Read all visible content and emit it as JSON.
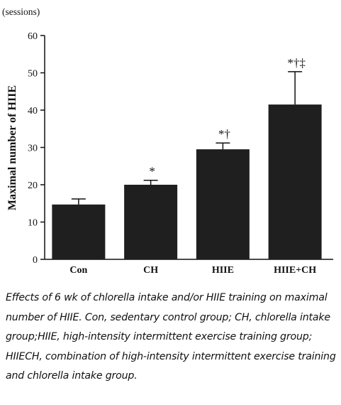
{
  "chart_data": {
    "type": "bar",
    "unit_label": "(sessions)",
    "ylabel": "Maximal number of HIIE",
    "xlabel": "",
    "categories": [
      "Con",
      "CH",
      "HIIE",
      "HIIE+CH"
    ],
    "values": [
      14.7,
      20.0,
      29.5,
      41.5
    ],
    "errors": [
      1.5,
      1.2,
      1.7,
      8.8
    ],
    "annotations": [
      "",
      "*",
      "*†",
      "*†‡"
    ],
    "ylim": [
      0,
      60
    ],
    "yticks": [
      "0",
      "10",
      "20",
      "30",
      "40",
      "50",
      "60"
    ],
    "grid": false,
    "bar_color": "#1f1f1f"
  },
  "caption": "Effects of 6 wk of chlorella intake and/or HIIE training on maximal number of HIIE. Con, sedentary control group; CH, chlorella intake group;HIIE, high-intensity intermittent exercise training group; HIIECH, combination of high-intensity intermittent exercise training and chlorella intake group."
}
